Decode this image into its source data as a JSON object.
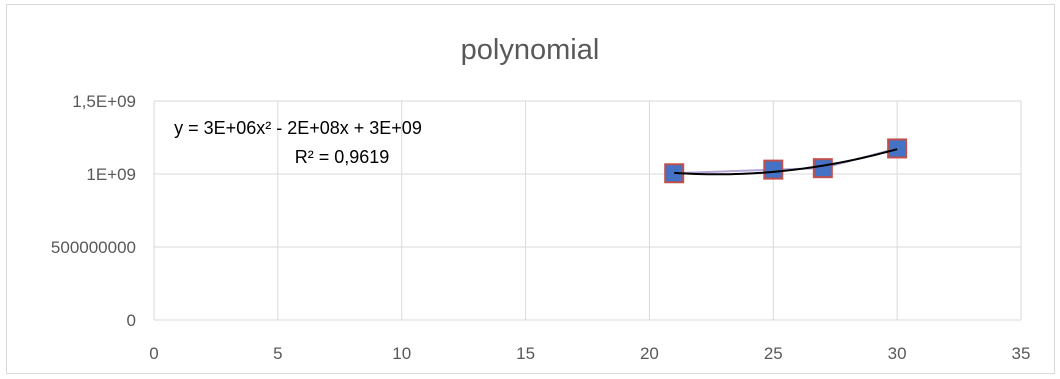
{
  "chart_data": {
    "type": "scatter",
    "title": "polynomial",
    "xlabel": "",
    "ylabel": "",
    "xlim": [
      0,
      35
    ],
    "ylim": [
      0,
      1500000000
    ],
    "x_ticks": [
      0,
      5,
      10,
      15,
      20,
      25,
      30,
      35
    ],
    "x_tick_labels": [
      "0",
      "5",
      "10",
      "15",
      "20",
      "25",
      "30",
      "35"
    ],
    "y_ticks": [
      0,
      500000000,
      1000000000,
      1500000000
    ],
    "y_tick_labels": [
      "0",
      "500000000",
      "1E+09",
      "1,5E+09"
    ],
    "grid": true,
    "legend": "none",
    "series": [
      {
        "x": [
          21,
          25,
          27,
          30
        ],
        "y": [
          1005000000,
          1030000000,
          1040000000,
          1175000000
        ],
        "marker": "square",
        "color": "#4472c4",
        "marker_edge_color": "#c0504d"
      }
    ],
    "trendline": {
      "type": "polynomial",
      "order": 2,
      "color": "#000000",
      "equation": "y = 3E+06x² - 2E+08x + 3E+09",
      "r_squared": "R² = 0,9619"
    }
  },
  "colors": {
    "grid": "#d9d9d9",
    "text": "#595959",
    "marker_fill": "#4472c4",
    "marker_edge": "#c0504d",
    "connector": "#b4a7d6"
  }
}
